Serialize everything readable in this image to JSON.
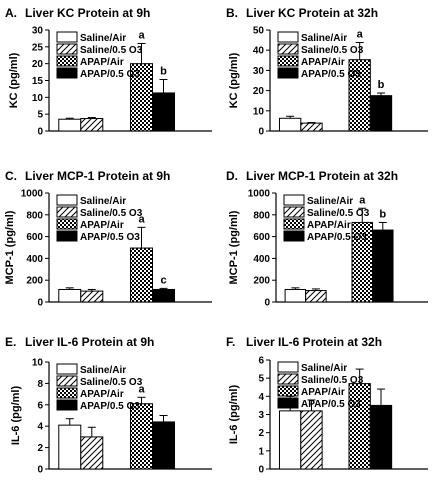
{
  "chart_data": [
    {
      "type": "bar",
      "panel": "A.",
      "title": "Liver KC Protein at 9h",
      "ylabel": "KC (pg/ml)",
      "ylim": [
        0,
        30
      ],
      "yticks": [
        0,
        5,
        10,
        15,
        20,
        25,
        30
      ],
      "legend_position": "top-left",
      "series": [
        {
          "name": "Saline/Air",
          "pattern": "white",
          "value": 3.5,
          "error": 0.3,
          "label": ""
        },
        {
          "name": "Saline/0.5 O3",
          "pattern": "diagonal",
          "value": 3.7,
          "error": 0.3,
          "label": ""
        },
        {
          "name": "APAP/Air",
          "pattern": "checker",
          "value": 20,
          "error": 6,
          "label": "a"
        },
        {
          "name": "APAP/0.5 O3",
          "pattern": "black",
          "value": 11.3,
          "error": 4,
          "label": "b"
        }
      ]
    },
    {
      "type": "bar",
      "panel": "B.",
      "title": "Liver KC Protein at 32h",
      "ylabel": "KC (pg/ml)",
      "ylim": [
        0,
        50
      ],
      "yticks": [
        0,
        10,
        20,
        30,
        40,
        50
      ],
      "legend_position": "top-left",
      "series": [
        {
          "name": "Saline/Air",
          "pattern": "white",
          "value": 6.3,
          "error": 1,
          "label": ""
        },
        {
          "name": "Saline/0.5 O3",
          "pattern": "diagonal",
          "value": 3.9,
          "error": 0.3,
          "label": ""
        },
        {
          "name": "APAP/Air",
          "pattern": "checker",
          "value": 35.3,
          "error": 8.5,
          "label": "a"
        },
        {
          "name": "APAP/0.5 O3",
          "pattern": "black",
          "value": 17.5,
          "error": 1.3,
          "label": "b"
        }
      ]
    },
    {
      "type": "bar",
      "panel": "C.",
      "title": "Liver MCP-1 Protein at 9h",
      "ylabel": "MCP-1 (pg/ml)",
      "ylim": [
        0,
        1000
      ],
      "yticks": [
        0,
        200,
        400,
        600,
        800,
        1000
      ],
      "legend_position": "top-left",
      "series": [
        {
          "name": "Saline/Air",
          "pattern": "white",
          "value": 115,
          "error": 15,
          "label": ""
        },
        {
          "name": "Saline/0.5 O3",
          "pattern": "diagonal",
          "value": 100,
          "error": 15,
          "label": ""
        },
        {
          "name": "APAP/Air",
          "pattern": "checker",
          "value": 495,
          "error": 190,
          "label": "a"
        },
        {
          "name": "APAP/0.5 O3",
          "pattern": "black",
          "value": 115,
          "error": 10,
          "label": "c"
        }
      ]
    },
    {
      "type": "bar",
      "panel": "D.",
      "title": "Liver MCP-1 Protein at 32h",
      "ylabel": "MCP-1 (pg/ml)",
      "ylim": [
        0,
        1000
      ],
      "yticks": [
        0,
        200,
        400,
        600,
        800,
        1000
      ],
      "legend_position": "top-left",
      "series": [
        {
          "name": "Saline/Air",
          "pattern": "white",
          "value": 115,
          "error": 15,
          "label": ""
        },
        {
          "name": "Saline/0.5 O3",
          "pattern": "diagonal",
          "value": 105,
          "error": 15,
          "label": ""
        },
        {
          "name": "APAP/Air",
          "pattern": "checker",
          "value": 730,
          "error": 130,
          "label": "a"
        },
        {
          "name": "APAP/0.5 O3",
          "pattern": "black",
          "value": 660,
          "error": 70,
          "label": "b"
        }
      ]
    },
    {
      "type": "bar",
      "panel": "E.",
      "title": "Liver IL-6 Protein at 9h",
      "ylabel": "IL-6 (pg/ml)",
      "ylim": [
        0,
        10
      ],
      "yticks": [
        0,
        2,
        4,
        6,
        8,
        10
      ],
      "legend_position": "top-left",
      "series": [
        {
          "name": "Saline/Air",
          "pattern": "white",
          "value": 4.1,
          "error": 0.6,
          "label": ""
        },
        {
          "name": "Saline/0.5 O3",
          "pattern": "diagonal",
          "value": 3.0,
          "error": 0.9,
          "label": ""
        },
        {
          "name": "APAP/Air",
          "pattern": "checker",
          "value": 6.1,
          "error": 0.6,
          "label": "a"
        },
        {
          "name": "APAP/0.5 O3",
          "pattern": "black",
          "value": 4.4,
          "error": 0.6,
          "label": ""
        }
      ]
    },
    {
      "type": "bar",
      "panel": "F.",
      "title": "Liver IL-6 Protein at 32h",
      "ylabel": "IL-6 (pg/ml)",
      "ylim": [
        0,
        6
      ],
      "yticks": [
        0,
        1,
        2,
        3,
        4,
        5,
        6
      ],
      "legend_position": "top-left",
      "series": [
        {
          "name": "Saline/Air",
          "pattern": "white",
          "value": 3.2,
          "error": 0.8,
          "label": ""
        },
        {
          "name": "Saline/0.5 O3",
          "pattern": "diagonal",
          "value": 3.2,
          "error": 0.6,
          "label": ""
        },
        {
          "name": "APAP/Air",
          "pattern": "checker",
          "value": 4.7,
          "error": 0.8,
          "label": ""
        },
        {
          "name": "APAP/0.5 O3",
          "pattern": "black",
          "value": 3.5,
          "error": 0.9,
          "label": ""
        }
      ]
    }
  ]
}
